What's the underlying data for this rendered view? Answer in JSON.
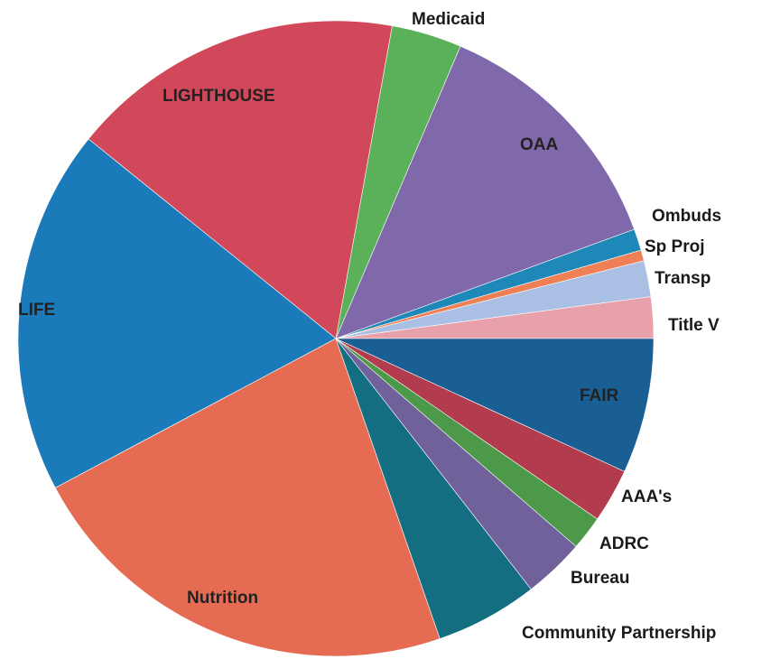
{
  "chart_data": {
    "type": "pie",
    "title": "",
    "start_angle_deg": 0,
    "direction": "counterclockwise-from-east",
    "slices": [
      {
        "label": "Title V",
        "value": 2.3,
        "color": "#e8a0ab"
      },
      {
        "label": "Transp",
        "value": 2.0,
        "color": "#a9bfe3"
      },
      {
        "label": "Sp Proj",
        "value": 0.6,
        "color": "#ef7f55"
      },
      {
        "label": "Ombuds",
        "value": 1.2,
        "color": "#1e88b8"
      },
      {
        "label": "OAA",
        "value": 14.2,
        "color": "#7f69aa"
      },
      {
        "label": "Medicaid",
        "value": 3.9,
        "color": "#5bb05a"
      },
      {
        "label": "LIGHTHOUSE",
        "value": 18.6,
        "color": "#d1485a"
      },
      {
        "label": "LIFE",
        "value": 20.3,
        "color": "#1b7ab9"
      },
      {
        "label": "Nutrition",
        "value": 24.6,
        "color": "#e56c52"
      },
      {
        "label": "Community Partnership",
        "value": 5.7,
        "color": "#136e82"
      },
      {
        "label": "Bureau",
        "value": 3.4,
        "color": "#71619b"
      },
      {
        "label": "ADRC",
        "value": 1.9,
        "color": "#4c9a49"
      },
      {
        "label": "AAA's",
        "value": 3.0,
        "color": "#b23b4d"
      },
      {
        "label": "FAIR",
        "value": 7.5,
        "color": "#1a5f93"
      }
    ]
  }
}
